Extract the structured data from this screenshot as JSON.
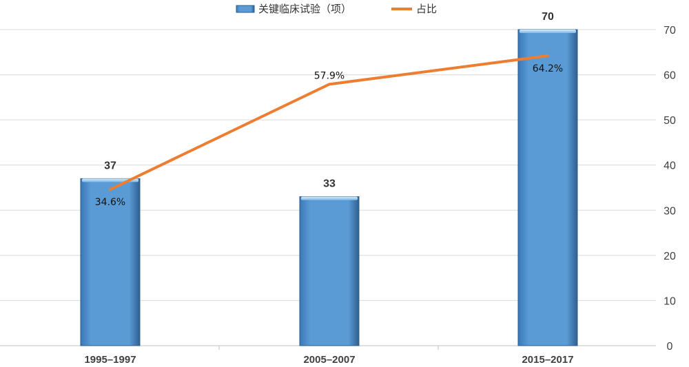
{
  "chart_data": {
    "type": "bar",
    "categories": [
      "1995–1997",
      "2005–2007",
      "2015–2017"
    ],
    "series": [
      {
        "name": "关键临床试验（项）",
        "type": "bar",
        "axis": "right",
        "values": [
          37,
          33,
          70
        ],
        "labels": [
          "37",
          "33",
          "70"
        ],
        "color": "#5b9bd5"
      },
      {
        "name": "占比",
        "type": "line",
        "values": [
          34.6,
          57.9,
          64.2
        ],
        "labels": [
          "34.6%",
          "57.9%",
          "64.2%"
        ],
        "color": "#ed7d31"
      }
    ],
    "y_right": {
      "ylim": [
        0,
        70
      ],
      "ticks": [
        "0",
        "10",
        "20",
        "30",
        "40",
        "50",
        "60",
        "70"
      ]
    },
    "grid": true,
    "legend": "top-center"
  }
}
